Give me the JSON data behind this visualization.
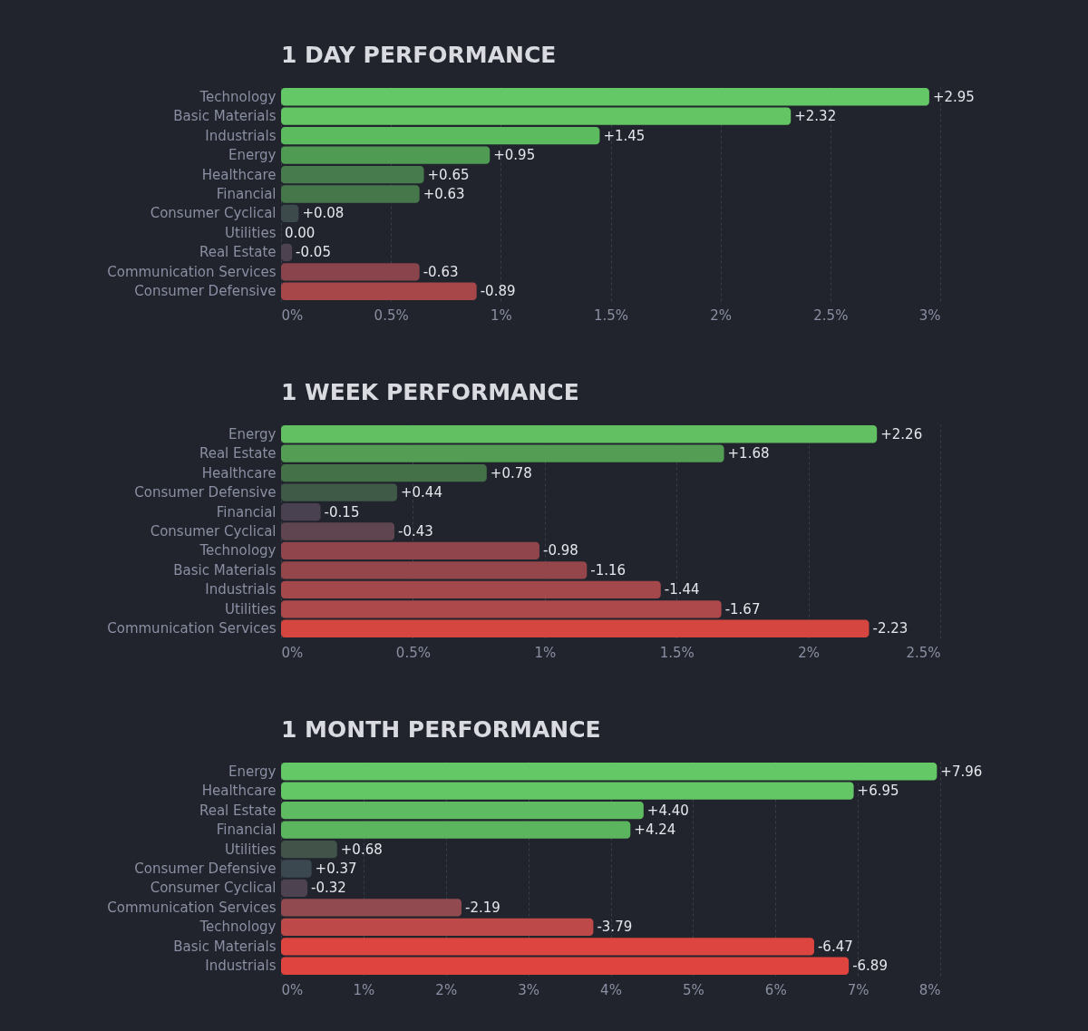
{
  "chart_data": [
    {
      "type": "bar",
      "orientation": "horizontal",
      "title": "1 DAY PERFORMANCE",
      "categories": [
        "Technology",
        "Basic Materials",
        "Industrials",
        "Energy",
        "Healthcare",
        "Financial",
        "Consumer Cyclical",
        "Utilities",
        "Real Estate",
        "Communication Services",
        "Consumer Defensive"
      ],
      "values": [
        2.95,
        2.32,
        1.45,
        0.95,
        0.65,
        0.63,
        0.08,
        0,
        -0.05,
        -0.63,
        -0.89
      ],
      "base": [
        0,
        0,
        0,
        0,
        0,
        0,
        0,
        null,
        0.05,
        0.63,
        0.89
      ],
      "value_labels": [
        "+2.95",
        "+2.32",
        "+1.45",
        "+0.95",
        "+0.65",
        "+0.63",
        "+0.08",
        "0.00",
        "-0.05",
        "-0.63",
        "-0.89"
      ],
      "colors": [
        "#65c866",
        "#63c564",
        "#5cbb5e",
        "#509b53",
        "#477a4c",
        "#46774b",
        "#3c4a4c",
        "#3d4450",
        "#4d4250",
        "#8a444b",
        "#a8474a"
      ],
      "xlim": [
        0,
        3
      ],
      "xticks": [
        {
          "value": 0,
          "label": "0%"
        },
        {
          "value": 0.5,
          "label": "0.5%"
        },
        {
          "value": 1,
          "label": "1%"
        },
        {
          "value": 1.5,
          "label": "1.5%"
        },
        {
          "value": 2,
          "label": "2%"
        },
        {
          "value": 2.5,
          "label": "2.5%"
        },
        {
          "value": 3,
          "label": "3%"
        }
      ],
      "grid": "x"
    },
    {
      "type": "bar",
      "orientation": "horizontal",
      "title": "1 WEEK PERFORMANCE",
      "categories": [
        "Energy",
        "Real Estate",
        "Healthcare",
        "Consumer Defensive",
        "Financial",
        "Consumer Cyclical",
        "Technology",
        "Basic Materials",
        "Industrials",
        "Utilities",
        "Communication Services"
      ],
      "values": [
        2.26,
        1.68,
        0.78,
        0.44,
        -0.15,
        -0.43,
        -0.98,
        -1.16,
        -1.44,
        -1.67,
        -2.23
      ],
      "base": [
        0,
        0,
        0,
        0,
        0.15,
        0.43,
        0.98,
        1.16,
        1.44,
        1.67,
        2.23
      ],
      "value_labels": [
        "+2.26",
        "+1.68",
        "+0.78",
        "+0.44",
        "-0.15",
        "-0.43",
        "-0.98",
        "-1.16",
        "-1.44",
        "-1.67",
        "-2.23"
      ],
      "colors": [
        "#62c063",
        "#539d55",
        "#457149",
        "#3f5b48",
        "#4a4150",
        "#5e4550",
        "#8f454b",
        "#95464b",
        "#a5484b",
        "#ad494b",
        "#d4463f"
      ],
      "xlim": [
        0,
        2.5
      ],
      "xticks": [
        {
          "value": 0,
          "label": "0%"
        },
        {
          "value": 0.5,
          "label": "0.5%"
        },
        {
          "value": 1,
          "label": "1%"
        },
        {
          "value": 1.5,
          "label": "1.5%"
        },
        {
          "value": 2,
          "label": "2%"
        },
        {
          "value": 2.5,
          "label": "2.5%"
        }
      ],
      "grid": "x"
    },
    {
      "type": "bar",
      "orientation": "horizontal",
      "title": "1 MONTH PERFORMANCE",
      "categories": [
        "Energy",
        "Healthcare",
        "Real Estate",
        "Financial",
        "Utilities",
        "Consumer Defensive",
        "Consumer Cyclical",
        "Communication Services",
        "Technology",
        "Basic Materials",
        "Industrials"
      ],
      "values": [
        7.96,
        6.95,
        4.4,
        4.24,
        0.68,
        0.37,
        -0.32,
        -2.19,
        -3.79,
        -6.47,
        -6.89
      ],
      "base": [
        0,
        0,
        0,
        0,
        0,
        0,
        0.32,
        2.19,
        3.79,
        6.47,
        6.89
      ],
      "value_labels": [
        "+7.96",
        "+6.95",
        "+4.40",
        "+4.24",
        "+0.68",
        "+0.37",
        "-0.32",
        "-2.19",
        "-3.79",
        "-6.47",
        "-6.89"
      ],
      "colors": [
        "#65c866",
        "#64c766",
        "#5fbb61",
        "#5bb55e",
        "#425349",
        "#3b4850",
        "#4d4250",
        "#914a4f",
        "#bd4a48",
        "#dd4540",
        "#e0443f"
      ],
      "xlim": [
        0,
        8
      ],
      "xticks": [
        {
          "value": 0,
          "label": "0%"
        },
        {
          "value": 1,
          "label": "1%"
        },
        {
          "value": 2,
          "label": "2%"
        },
        {
          "value": 3,
          "label": "3%"
        },
        {
          "value": 4,
          "label": "4%"
        },
        {
          "value": 5,
          "label": "5%"
        },
        {
          "value": 6,
          "label": "6%"
        },
        {
          "value": 7,
          "label": "7%"
        },
        {
          "value": 8,
          "label": "8%"
        }
      ],
      "grid": "x"
    }
  ]
}
